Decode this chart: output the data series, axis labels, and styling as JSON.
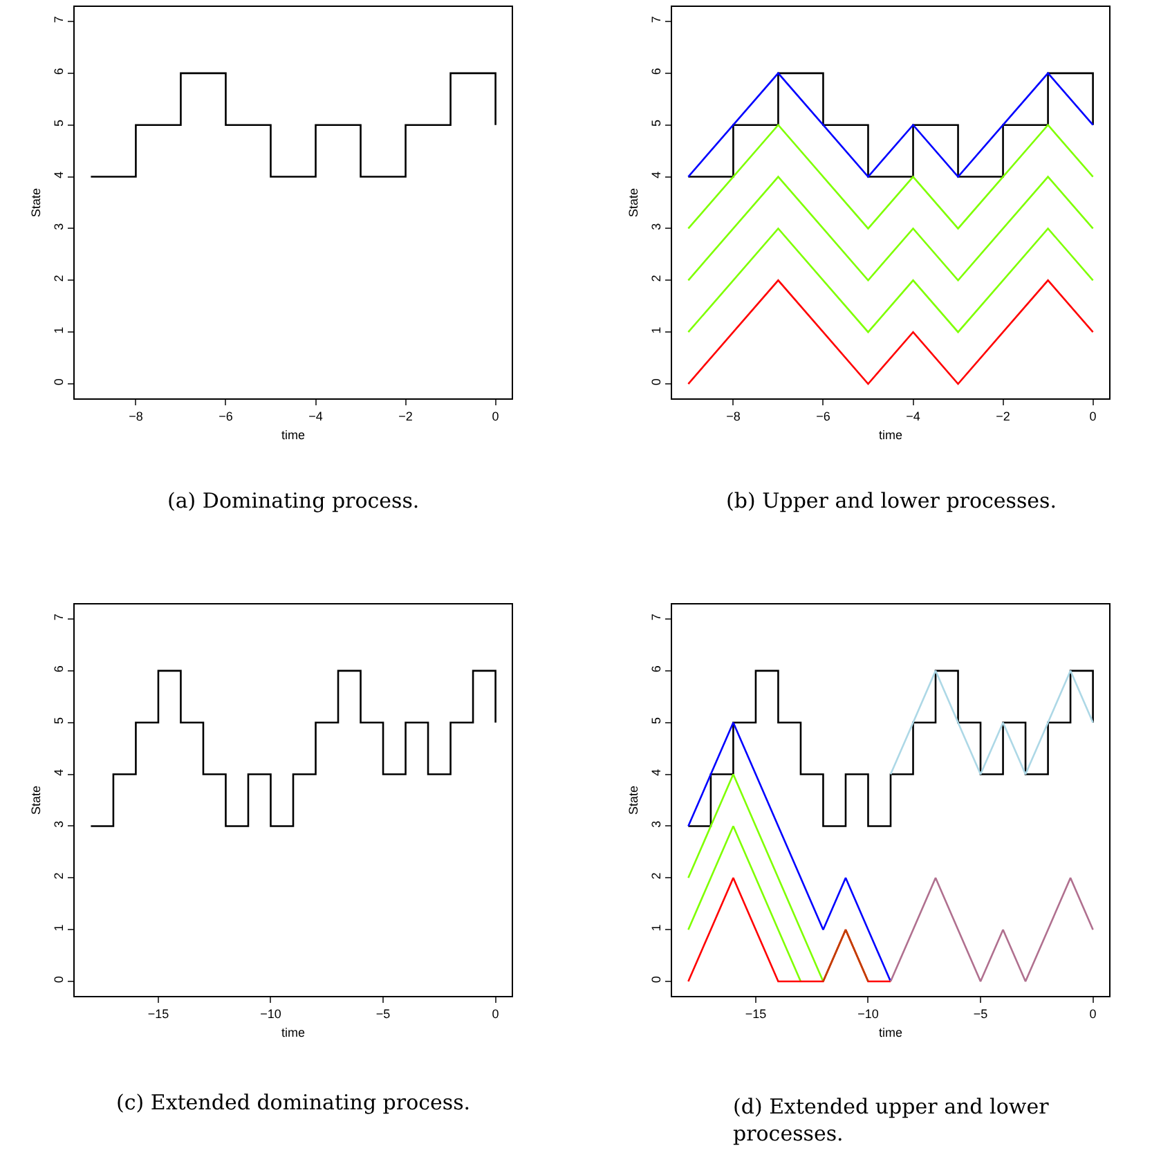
{
  "chart_data": [
    {
      "type": "step",
      "xlabel": "time",
      "ylabel": "State",
      "annotations": [
        "(a) Dominating process."
      ],
      "xlim": [
        -9.36,
        0.36
      ],
      "ylim": [
        -0.28,
        7.28
      ],
      "xticks": [
        -8,
        -6,
        -4,
        -2,
        0
      ],
      "yticks": [
        0,
        1,
        2,
        3,
        4,
        5,
        6,
        7
      ],
      "series": [
        {
          "color": "#000000",
          "x": [
            -9,
            -8,
            -7,
            -6,
            -5,
            -4,
            -3,
            -2,
            -1,
            0
          ],
          "values": [
            4,
            5,
            6,
            5,
            4,
            5,
            4,
            5,
            6,
            5
          ]
        }
      ]
    },
    {
      "type": "step",
      "xlabel": "time",
      "ylabel": "State",
      "annotations": [
        "(b) Upper and lower processes."
      ],
      "xlim": [
        -9.36,
        0.36
      ],
      "ylim": [
        -0.28,
        7.28
      ],
      "xticks": [
        -8,
        -6,
        -4,
        -2,
        0
      ],
      "yticks": [
        0,
        1,
        2,
        3,
        4,
        5,
        6,
        7
      ],
      "series": [
        {
          "color": "#000000",
          "x": [
            -9,
            -8,
            -7,
            -6,
            -5,
            -4,
            -3,
            -2,
            -1,
            0
          ],
          "values": [
            4,
            5,
            6,
            5,
            4,
            5,
            4,
            5,
            6,
            5
          ]
        },
        {
          "type": "line",
          "color": "#0000ff",
          "x": [
            -9,
            -8,
            -7,
            -6,
            -5,
            -4,
            -3,
            -2,
            -1,
            0
          ],
          "values": [
            4,
            5,
            6,
            5,
            4,
            5,
            4,
            5,
            6,
            5
          ]
        },
        {
          "type": "line",
          "color": "#7fff00",
          "x": [
            -9,
            -8,
            -7,
            -6,
            -5,
            -4,
            -3,
            -2,
            -1,
            0
          ],
          "values": [
            3,
            4,
            5,
            4,
            3,
            4,
            3,
            4,
            5,
            4
          ]
        },
        {
          "type": "line",
          "color": "#7fff00",
          "x": [
            -9,
            -8,
            -7,
            -6,
            -5,
            -4,
            -3,
            -2,
            -1,
            0
          ],
          "values": [
            2,
            3,
            4,
            3,
            2,
            3,
            2,
            3,
            4,
            3
          ]
        },
        {
          "type": "line",
          "color": "#7fff00",
          "x": [
            -9,
            -8,
            -7,
            -6,
            -5,
            -4,
            -3,
            -2,
            -1,
            0
          ],
          "values": [
            1,
            2,
            3,
            2,
            1,
            2,
            1,
            2,
            3,
            2
          ]
        },
        {
          "type": "line",
          "color": "#ff0000",
          "x": [
            -9,
            -8,
            -7,
            -6,
            -5,
            -4,
            -3,
            -2,
            -1,
            0
          ],
          "values": [
            0,
            1,
            2,
            1,
            0,
            1,
            0,
            1,
            2,
            1
          ]
        }
      ]
    },
    {
      "type": "step",
      "xlabel": "time",
      "ylabel": "State",
      "annotations": [
        "(c) Extended dominating process."
      ],
      "xlim": [
        -18.72,
        0.72
      ],
      "ylim": [
        -0.28,
        7.28
      ],
      "xticks": [
        -15,
        -10,
        -5,
        0
      ],
      "yticks": [
        0,
        1,
        2,
        3,
        4,
        5,
        6,
        7
      ],
      "series": [
        {
          "color": "#000000",
          "x": [
            -18,
            -17,
            -16,
            -15,
            -14,
            -13,
            -12,
            -11,
            -10,
            -9,
            -8,
            -7,
            -6,
            -5,
            -4,
            -3,
            -2,
            -1,
            0
          ],
          "values": [
            3,
            4,
            5,
            6,
            5,
            4,
            3,
            4,
            3,
            4,
            5,
            6,
            5,
            4,
            5,
            4,
            5,
            6,
            5
          ]
        }
      ]
    },
    {
      "type": "step",
      "xlabel": "time",
      "ylabel": "State",
      "annotations": [
        "(d) Extended upper and lower processes."
      ],
      "xlim": [
        -18.72,
        0.72
      ],
      "ylim": [
        -0.28,
        7.28
      ],
      "xticks": [
        -15,
        -10,
        -5,
        0
      ],
      "yticks": [
        0,
        1,
        2,
        3,
        4,
        5,
        6,
        7
      ],
      "series": [
        {
          "color": "#000000",
          "x": [
            -18,
            -17,
            -16,
            -15,
            -14,
            -13,
            -12,
            -11,
            -10,
            -9,
            -8,
            -7,
            -6,
            -5,
            -4,
            -3,
            -2,
            -1,
            0
          ],
          "values": [
            3,
            4,
            5,
            6,
            5,
            4,
            3,
            4,
            3,
            4,
            5,
            6,
            5,
            4,
            5,
            4,
            5,
            6,
            5
          ]
        },
        {
          "type": "line",
          "color": "#0000ff",
          "x": [
            -18,
            -17,
            -16,
            -15,
            -14,
            -13,
            -12,
            -11,
            -10,
            -9
          ],
          "values": [
            3,
            4,
            5,
            4,
            3,
            2,
            1,
            2,
            1,
            0
          ]
        },
        {
          "type": "line",
          "color": "#7fff00",
          "x": [
            -18,
            -17,
            -16,
            -15,
            -14,
            -13,
            -12
          ],
          "values": [
            2,
            3,
            4,
            3,
            2,
            1,
            0
          ]
        },
        {
          "type": "line",
          "color": "#7fff00",
          "x": [
            -18,
            -17,
            -16,
            -15,
            -14,
            -13
          ],
          "values": [
            1,
            2,
            3,
            2,
            1,
            0
          ]
        },
        {
          "type": "line",
          "color": "#ff0000",
          "x": [
            -18,
            -17,
            -16,
            -15,
            -14,
            -13,
            -12,
            -11,
            -10,
            -9
          ],
          "values": [
            0,
            1,
            2,
            1,
            0,
            0,
            0,
            1,
            0,
            0
          ]
        },
        {
          "type": "line",
          "color": "#c04000",
          "x": [
            -12,
            -11,
            -10
          ],
          "values": [
            0,
            1,
            0
          ]
        },
        {
          "type": "line",
          "color": "#add8e6",
          "x": [
            -9,
            -8,
            -7,
            -6,
            -5,
            -4,
            -3,
            -2,
            -1,
            0
          ],
          "values": [
            4,
            5,
            6,
            5,
            4,
            5,
            4,
            5,
            6,
            5
          ]
        },
        {
          "type": "line",
          "color": "#b0708f",
          "x": [
            -9,
            -8,
            -7,
            -6,
            -5,
            -4,
            -3,
            -2,
            -1,
            0
          ],
          "values": [
            0,
            1,
            2,
            1,
            0,
            1,
            0,
            1,
            2,
            1
          ]
        }
      ]
    }
  ]
}
